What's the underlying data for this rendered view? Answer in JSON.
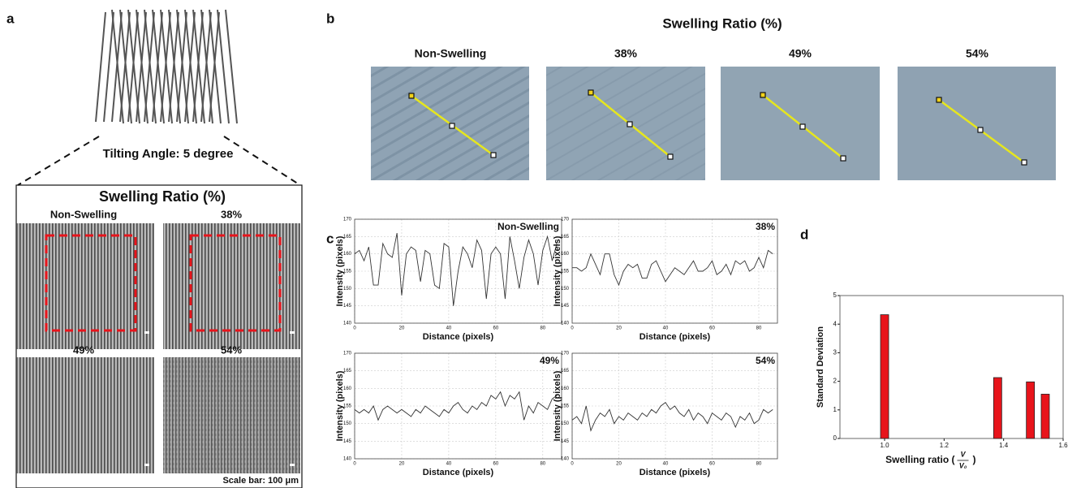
{
  "figure": {
    "panel_labels": [
      "a",
      "b",
      "c",
      "d"
    ],
    "a": {
      "tilt_label": "Tilting Angle: 5 degree",
      "title": "Swelling Ratio (%)",
      "images": [
        "Non-Swelling",
        "38%",
        "49%",
        "54%"
      ],
      "scale_bar": "Scale bar: 100 μm"
    },
    "b": {
      "title": "Swelling Ratio (%)",
      "images": [
        "Non-Swelling",
        "38%",
        "49%",
        "54%"
      ]
    }
  },
  "chart_data": [
    {
      "type": "line",
      "title": "Non-Swelling",
      "xlabel": "Distance (pixels)",
      "ylabel": "Intensity (pixels)",
      "color": "#333333",
      "grid": true,
      "x": [
        0,
        2,
        4,
        6,
        8,
        10,
        12,
        14,
        16,
        18,
        20,
        22,
        24,
        26,
        28,
        30,
        32,
        34,
        36,
        38,
        40,
        42,
        44,
        46,
        48,
        50,
        52,
        54,
        56,
        58,
        60,
        62,
        64,
        66,
        68,
        70,
        72,
        74,
        76,
        78,
        80,
        82,
        84,
        86
      ],
      "values": [
        160,
        161,
        158,
        162,
        151,
        151,
        163,
        160,
        159,
        166,
        148,
        160,
        162,
        161,
        152,
        161,
        160,
        151,
        150,
        163,
        162,
        145,
        155,
        162,
        160,
        156,
        164,
        161,
        147,
        160,
        162,
        160,
        147,
        165,
        158,
        150,
        159,
        164,
        160,
        151,
        161,
        165,
        158,
        163
      ],
      "xlim": [
        0,
        88
      ],
      "xticks": [
        0,
        20,
        40,
        60,
        80
      ],
      "ylim": [
        140,
        170
      ],
      "yticks": [
        140,
        145,
        150,
        155,
        160,
        165,
        170
      ]
    },
    {
      "type": "line",
      "title": "38%",
      "xlabel": "Distance (pixels)",
      "ylabel": "Intensity (pixels)",
      "color": "#333333",
      "grid": true,
      "x": [
        0,
        2,
        4,
        6,
        8,
        10,
        12,
        14,
        16,
        18,
        20,
        22,
        24,
        26,
        28,
        30,
        32,
        34,
        36,
        38,
        40,
        42,
        44,
        46,
        48,
        50,
        52,
        54,
        56,
        58,
        60,
        62,
        64,
        66,
        68,
        70,
        72,
        74,
        76,
        78,
        80,
        82,
        84,
        86
      ],
      "values": [
        156,
        156,
        155,
        156,
        160,
        157,
        154,
        160,
        160,
        154,
        151,
        155,
        157,
        156,
        157,
        153,
        153,
        157,
        158,
        155,
        152,
        154,
        156,
        155,
        154,
        156,
        158,
        155,
        155,
        156,
        158,
        154,
        155,
        157,
        154,
        158,
        157,
        158,
        155,
        156,
        159,
        156,
        161,
        160
      ],
      "xlim": [
        0,
        88
      ],
      "xticks": [
        0,
        20,
        40,
        60,
        80
      ],
      "ylim": [
        140,
        170
      ],
      "yticks": [
        140,
        145,
        150,
        155,
        160,
        165,
        170
      ]
    },
    {
      "type": "line",
      "title": "49%",
      "xlabel": "Distance (pixels)",
      "ylabel": "Intensity (pixels)",
      "color": "#333333",
      "grid": true,
      "x": [
        0,
        2,
        4,
        6,
        8,
        10,
        12,
        14,
        16,
        18,
        20,
        22,
        24,
        26,
        28,
        30,
        32,
        34,
        36,
        38,
        40,
        42,
        44,
        46,
        48,
        50,
        52,
        54,
        56,
        58,
        60,
        62,
        64,
        66,
        68,
        70,
        72,
        74,
        76,
        78,
        80,
        82,
        84,
        86
      ],
      "values": [
        154,
        153,
        154,
        153,
        155,
        151,
        154,
        155,
        154,
        153,
        154,
        153,
        152,
        154,
        153,
        155,
        154,
        153,
        152,
        154,
        153,
        155,
        156,
        154,
        153,
        155,
        154,
        156,
        155,
        158,
        157,
        159,
        155,
        158,
        157,
        159,
        151,
        155,
        153,
        156,
        155,
        154,
        157,
        158
      ],
      "xlim": [
        0,
        88
      ],
      "xticks": [
        0,
        20,
        40,
        60,
        80
      ],
      "ylim": [
        140,
        170
      ],
      "yticks": [
        140,
        145,
        150,
        155,
        160,
        165,
        170
      ]
    },
    {
      "type": "line",
      "title": "54%",
      "xlabel": "Distance (pixels)",
      "ylabel": "Intensity (pixels)",
      "color": "#333333",
      "grid": true,
      "x": [
        0,
        2,
        4,
        6,
        8,
        10,
        12,
        14,
        16,
        18,
        20,
        22,
        24,
        26,
        28,
        30,
        32,
        34,
        36,
        38,
        40,
        42,
        44,
        46,
        48,
        50,
        52,
        54,
        56,
        58,
        60,
        62,
        64,
        66,
        68,
        70,
        72,
        74,
        76,
        78,
        80,
        82,
        84,
        86
      ],
      "values": [
        151,
        152,
        150,
        155,
        148,
        151,
        153,
        152,
        154,
        150,
        152,
        151,
        153,
        152,
        151,
        153,
        152,
        154,
        153,
        155,
        156,
        154,
        155,
        153,
        152,
        154,
        151,
        153,
        152,
        150,
        153,
        152,
        151,
        153,
        152,
        149,
        152,
        151,
        153,
        150,
        151,
        154,
        153,
        154
      ],
      "xlim": [
        0,
        88
      ],
      "xticks": [
        0,
        20,
        40,
        60,
        80
      ],
      "ylim": [
        140,
        170
      ],
      "yticks": [
        140,
        145,
        150,
        155,
        160,
        165,
        170
      ]
    },
    {
      "type": "bar",
      "ylabel": "Standard Deviation",
      "xlabel": {
        "prefix": "Swelling ratio (",
        "numerator": "V",
        "denominator": "V₀",
        "suffix": ")"
      },
      "color": "#e8141b",
      "grid": false,
      "x": [
        1.0,
        1.38,
        1.49,
        1.54
      ],
      "values": [
        4.33,
        2.13,
        1.98,
        1.55
      ],
      "xlim": [
        0.85,
        1.6
      ],
      "xticks": [
        {
          "value": 1,
          "label": "1.0"
        },
        1.2,
        1.4,
        1.6
      ],
      "ylim": [
        0,
        5
      ],
      "yticks": [
        0,
        1,
        2,
        3,
        4,
        5
      ]
    }
  ]
}
